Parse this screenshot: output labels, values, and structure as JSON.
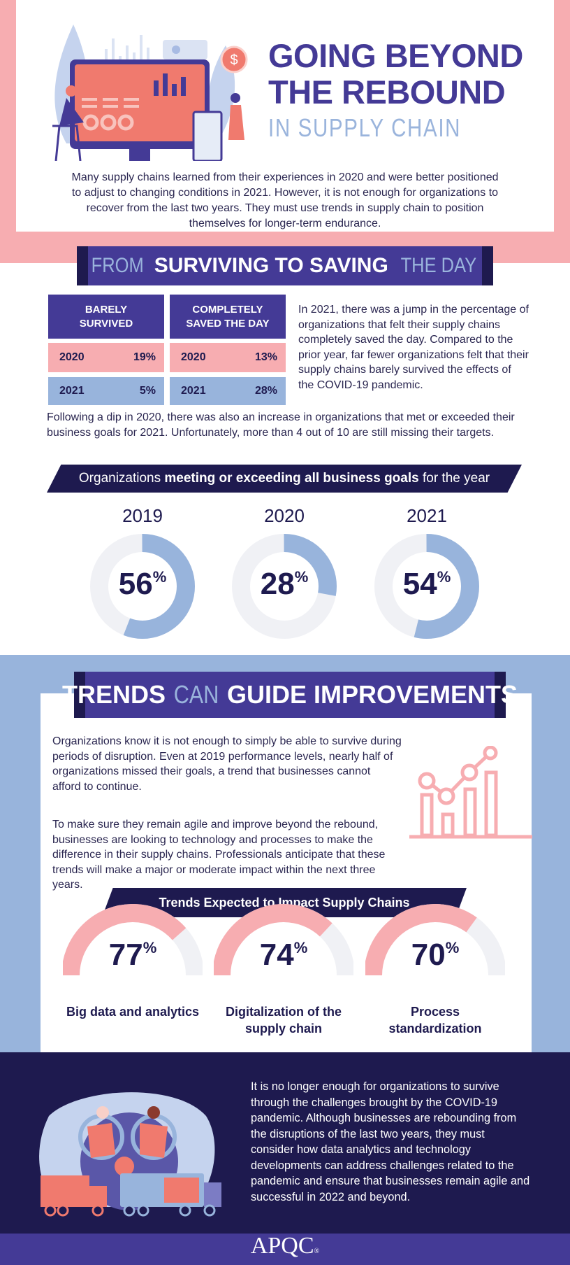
{
  "header": {
    "title_line1": "GOING BEYOND",
    "title_line2": "THE REBOUND",
    "subtitle": "IN SUPPLY CHAIN",
    "intro": "Many supply chains learned from their experiences in 2020 and were better positioned to adjust to changing conditions in 2021. However, it is not enough for organizations to recover from the last two years. They must use trends in supply chain to position themselves for longer-term endurance."
  },
  "section1": {
    "banner": {
      "pre": "FROM",
      "bold": "SURVIVING TO SAVING",
      "post": "THE DAY"
    },
    "table": {
      "columns": [
        {
          "header": "BARELY SURVIVED",
          "rows": [
            {
              "year": "2020",
              "value": "19%"
            },
            {
              "year": "2021",
              "value": "5%"
            }
          ]
        },
        {
          "header": "COMPLETELY SAVED THE DAY",
          "rows": [
            {
              "year": "2020",
              "value": "13%"
            },
            {
              "year": "2021",
              "value": "28%"
            }
          ]
        }
      ]
    },
    "side_text": "In 2021, there was a jump in the percentage of organizations that felt their supply chains completely saved the day. Compared to the prior year, far fewer organizations felt that their supply chains barely survived the effects of the COVID-19 pandemic.",
    "para": "Following a dip in 2020, there was also an increase in organizations that met or exceeded their business goals for 2021. Unfortunately, more than 4 out of 10 are still missing their targets.",
    "goals_banner": {
      "pre": "Organizations",
      "bold": "meeting or exceeding all business goals",
      "post": "for the year"
    }
  },
  "chart_data": [
    {
      "type": "pie",
      "title": "Organizations meeting or exceeding all business goals for the year",
      "categories": [
        "2019",
        "2020",
        "2021"
      ],
      "values": [
        56,
        28,
        54
      ],
      "unit": "%",
      "labels": [
        "56",
        "28",
        "54"
      ]
    },
    {
      "type": "pie",
      "title": "Trends Expected to Impact Supply Chains",
      "categories": [
        "Big data and analytics",
        "Digitalization of the supply chain",
        "Process standardization"
      ],
      "values": [
        77,
        74,
        70
      ],
      "unit": "%",
      "labels": [
        "77",
        "74",
        "70"
      ]
    }
  ],
  "section2": {
    "banner": {
      "bold1": "TRENDS",
      "light": "CAN",
      "bold2": "GUIDE IMPROVEMENTS"
    },
    "para1": "Organizations know it is not enough to simply be able to survive during periods of disruption. Even at 2019 performance levels, nearly half of organizations missed their goals, a trend that businesses cannot afford to continue.",
    "para2": "To make sure they remain agile and improve beyond the rebound, businesses are looking to technology and processes to make the difference in their supply chains. Professionals anticipate that these trends will make a major or moderate impact within the next three years.",
    "trends_banner": "Trends Expected to Impact Supply Chains"
  },
  "closing": {
    "text": "It is no longer enough for organizations to survive through the challenges brought by the COVID-19 pandemic. Although businesses are rebounding from the disruptions of the last two years, they must consider how data analytics and technology developments can address challenges related to the pandemic and ensure that businesses remain agile and successful in 2022 and beyond."
  },
  "footer": {
    "logo": "APQC",
    "reg": "®"
  },
  "colors": {
    "purple": "#443a96",
    "navy": "#1e1a4f",
    "pink": "#f7adb1",
    "blue": "#98b4dc",
    "grey": "#f0f1f5",
    "salmon": "#f07a6e"
  },
  "percent_sign": "%"
}
